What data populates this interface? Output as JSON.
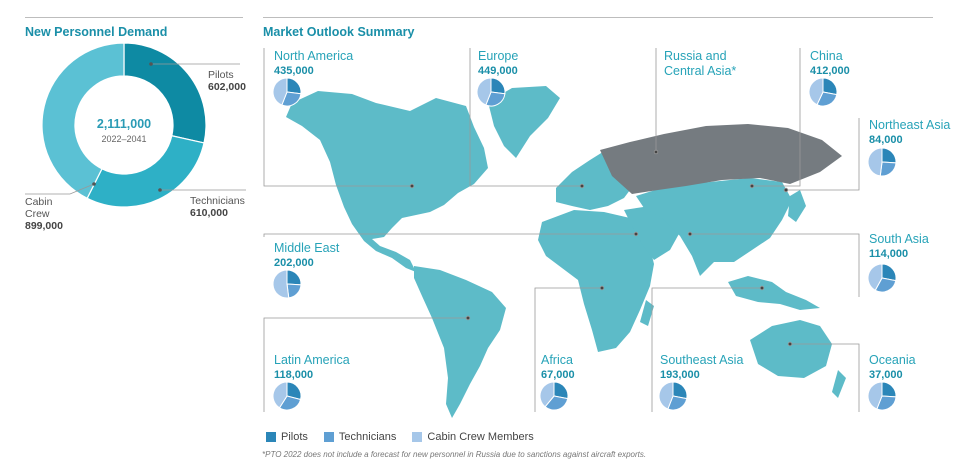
{
  "left_panel": {
    "title": "New Personnel Demand"
  },
  "right_panel": {
    "title": "Market Outlook Summary"
  },
  "colors": {
    "pilots": "#2b86b8",
    "technicians": "#5f9fd3",
    "cabin_crew": "#a6c7e9",
    "donut_pilots": "#0e8aa3",
    "donut_technicians": "#2eb0c6",
    "donut_cabin_crew": "#5bc1d4",
    "land": "#5dbbc8",
    "russia": "#757b80"
  },
  "chart_data": [
    {
      "type": "pie",
      "title": "New Personnel Demand",
      "donut": true,
      "center_total": "2,111,000",
      "center_subtitle": "2022–2041",
      "slices": [
        {
          "label": "Pilots",
          "value": 602000,
          "display": "602,000"
        },
        {
          "label": "Technicians",
          "value": 610000,
          "display": "610,000"
        },
        {
          "label": "Cabin\nCrew",
          "value": 899000,
          "display": "899,000"
        }
      ]
    },
    {
      "type": "pie",
      "title": "Market Outlook Summary",
      "legend": [
        "Pilots",
        "Technicians",
        "Cabin Crew Members"
      ],
      "regions": [
        {
          "name": "North America",
          "total": "435,000",
          "shares": [
            0.27,
            0.29,
            0.44
          ]
        },
        {
          "name": "Europe",
          "total": "449,000",
          "shares": [
            0.27,
            0.29,
            0.44
          ]
        },
        {
          "name": "Russia and Central Asia*",
          "total": "",
          "shares": []
        },
        {
          "name": "China",
          "total": "412,000",
          "shares": [
            0.28,
            0.29,
            0.43
          ]
        },
        {
          "name": "Northeast Asia",
          "total": "84,000",
          "shares": [
            0.26,
            0.26,
            0.48
          ]
        },
        {
          "name": "Middle East",
          "total": "202,000",
          "shares": [
            0.26,
            0.22,
            0.52
          ]
        },
        {
          "name": "South Asia",
          "total": "114,000",
          "shares": [
            0.28,
            0.3,
            0.42
          ]
        },
        {
          "name": "Latin America",
          "total": "118,000",
          "shares": [
            0.29,
            0.3,
            0.41
          ]
        },
        {
          "name": "Africa",
          "total": "67,000",
          "shares": [
            0.28,
            0.33,
            0.39
          ]
        },
        {
          "name": "Southeast Asia",
          "total": "193,000",
          "shares": [
            0.28,
            0.28,
            0.44
          ]
        },
        {
          "name": "Oceania",
          "total": "37,000",
          "shares": [
            0.26,
            0.3,
            0.44
          ]
        }
      ]
    }
  ],
  "footnote": "*PTO 2022 does not include a forecast for new personnel in Russia due to sanctions against aircraft exports."
}
